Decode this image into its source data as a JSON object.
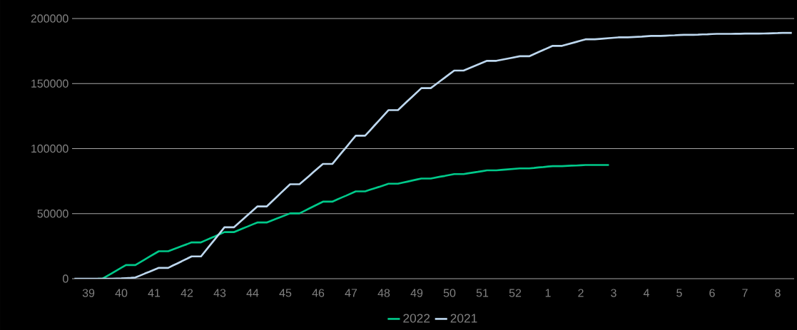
{
  "chart_data": {
    "type": "line",
    "categories": [
      null,
      null,
      null,
      "39",
      null,
      null,
      null,
      null,
      null,
      null,
      "40",
      null,
      null,
      null,
      null,
      null,
      null,
      "41",
      null,
      null,
      null,
      null,
      null,
      null,
      "42",
      null,
      null,
      null,
      null,
      null,
      null,
      "43",
      null,
      null,
      null,
      null,
      null,
      null,
      "44",
      null,
      null,
      null,
      null,
      null,
      null,
      "45",
      null,
      null,
      null,
      null,
      null,
      null,
      "46",
      null,
      null,
      null,
      null,
      null,
      null,
      "47",
      null,
      null,
      null,
      null,
      null,
      null,
      "48",
      null,
      null,
      null,
      null,
      null,
      null,
      "49",
      null,
      null,
      null,
      null,
      null,
      null,
      "50",
      null,
      null,
      null,
      null,
      null,
      null,
      "51",
      null,
      null,
      null,
      null,
      null,
      null,
      "52",
      null,
      null,
      null,
      null,
      null,
      null,
      "1",
      null,
      null,
      null,
      null,
      null,
      null,
      "2",
      null,
      null,
      null,
      null,
      null,
      null,
      "3",
      null,
      null,
      null,
      null,
      null,
      null,
      "4",
      null,
      null,
      null,
      null,
      null,
      null,
      "5",
      null,
      null,
      null,
      null,
      null,
      null,
      "6",
      null,
      null,
      null,
      null,
      null,
      null,
      "7",
      null,
      null,
      null,
      null,
      null,
      null,
      "8",
      null,
      null,
      null
    ],
    "ylim": [
      0,
      200000
    ],
    "yticks": [
      0,
      50000,
      100000,
      150000,
      200000
    ],
    "grid": "y",
    "legend": "bottom",
    "series": [
      {
        "name": "2022",
        "color": "#00c98a",
        "values": [
          null,
          null,
          null,
          null,
          null,
          0,
          0,
          2100,
          4200,
          6300,
          8400,
          10500,
          10500,
          10500,
          12600,
          14700,
          16900,
          19000,
          21100,
          21100,
          21100,
          22500,
          23800,
          25200,
          26500,
          27900,
          27900,
          27900,
          29500,
          31100,
          32600,
          34200,
          35800,
          35800,
          35800,
          37300,
          38800,
          40200,
          41700,
          43200,
          43200,
          43200,
          44600,
          46000,
          47400,
          48800,
          50200,
          50200,
          50200,
          52000,
          53800,
          55600,
          57400,
          59200,
          59200,
          59200,
          60800,
          62400,
          63900,
          65500,
          67100,
          67100,
          67100,
          68300,
          69500,
          70600,
          71800,
          73000,
          73000,
          73000,
          73800,
          74600,
          75400,
          76200,
          77000,
          77000,
          77000,
          77700,
          78400,
          79000,
          79700,
          80400,
          80400,
          80400,
          81000,
          81600,
          82100,
          82700,
          83300,
          83300,
          83300,
          83600,
          83900,
          84200,
          84500,
          84800,
          84800,
          84800,
          85100,
          85500,
          85800,
          86200,
          86500,
          86500,
          86500,
          86700,
          86900,
          87000,
          87200,
          87400,
          87400,
          87400,
          87400,
          87400,
          87400,
          null,
          null,
          null,
          null,
          null,
          null,
          null,
          null,
          null,
          null,
          null,
          null,
          null,
          null,
          null,
          null,
          null,
          null,
          null,
          null,
          null,
          null,
          null,
          null,
          null,
          null,
          null,
          null,
          null,
          null,
          null,
          null,
          null,
          null,
          null,
          null,
          null,
          null,
          null
        ]
      },
      {
        "name": "2021",
        "color": "#bdd7ee",
        "values": [
          0,
          0,
          0,
          0,
          0,
          0,
          0,
          0,
          0,
          100,
          200,
          400,
          600,
          900,
          2400,
          3900,
          5300,
          6800,
          8300,
          8300,
          8300,
          10100,
          11800,
          13600,
          15300,
          17100,
          17100,
          17100,
          21600,
          26100,
          30500,
          35000,
          39500,
          39500,
          39500,
          42700,
          45900,
          49100,
          52300,
          55500,
          55500,
          55500,
          58900,
          62300,
          65800,
          69200,
          72600,
          72600,
          72600,
          75700,
          78800,
          82000,
          85100,
          88200,
          88200,
          88200,
          92500,
          96900,
          101200,
          105600,
          109900,
          109900,
          109900,
          113800,
          117800,
          121700,
          125700,
          129600,
          129600,
          129600,
          133000,
          136400,
          139700,
          143100,
          146500,
          146500,
          146500,
          149200,
          151900,
          154600,
          157300,
          160000,
          160000,
          160000,
          161500,
          163000,
          164500,
          166000,
          167500,
          167500,
          167500,
          168200,
          168900,
          169600,
          170300,
          171000,
          171000,
          171000,
          172600,
          174200,
          175800,
          177400,
          179000,
          179000,
          179000,
          180000,
          181000,
          182000,
          183000,
          184000,
          184000,
          184000,
          184300,
          184600,
          184900,
          185200,
          185500,
          185500,
          185500,
          185700,
          185900,
          186100,
          186400,
          186600,
          186600,
          186600,
          186800,
          187000,
          187100,
          187300,
          187500,
          187500,
          187500,
          187600,
          187800,
          187900,
          188100,
          188200,
          188200,
          188200,
          188200,
          188300,
          188300,
          188400,
          188400,
          188400,
          188400,
          188500,
          188600,
          188700,
          188800,
          189000,
          189000,
          189000
        ]
      }
    ]
  }
}
